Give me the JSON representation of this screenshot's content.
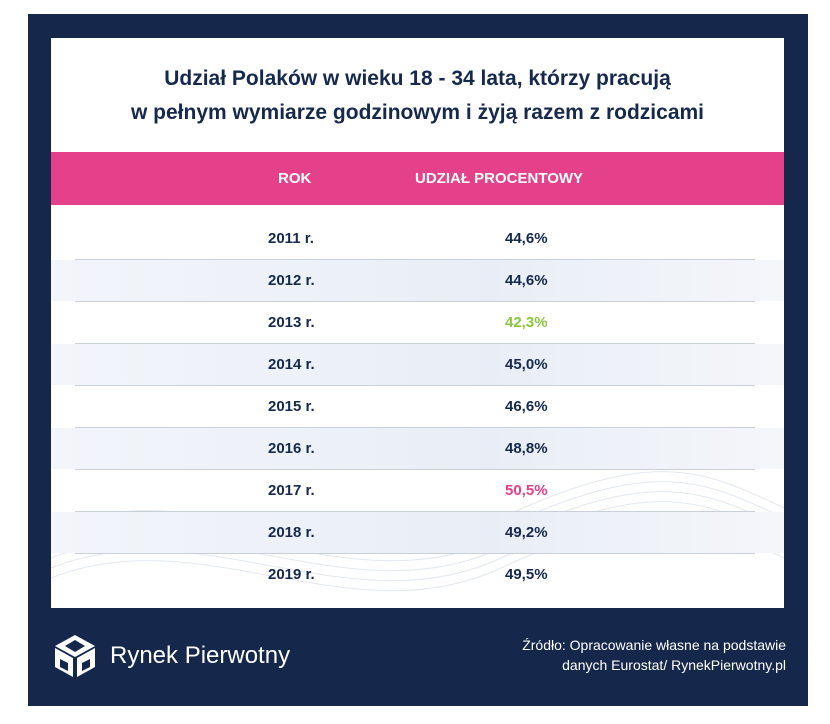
{
  "title": {
    "line1": "Udział Polaków w wieku 18 - 34 lata, którzy pracują",
    "line2": "w pełnym wymiarze godzinowym i żyją razem z rodzicami"
  },
  "chart_data": {
    "type": "table",
    "columns": [
      "ROK",
      "UDZIAŁ PROCENTOWY"
    ],
    "rows": [
      {
        "year": "2011 r.",
        "value": "44,6%",
        "highlight": "none"
      },
      {
        "year": "2012 r.",
        "value": "44,6%",
        "highlight": "none"
      },
      {
        "year": "2013 r.",
        "value": "42,3%",
        "highlight": "min"
      },
      {
        "year": "2014 r.",
        "value": "45,0%",
        "highlight": "none"
      },
      {
        "year": "2015 r.",
        "value": "46,6%",
        "highlight": "none"
      },
      {
        "year": "2016 r.",
        "value": "48,8%",
        "highlight": "none"
      },
      {
        "year": "2017 r.",
        "value": "50,5%",
        "highlight": "max"
      },
      {
        "year": "2018 r.",
        "value": "49,2%",
        "highlight": "none"
      },
      {
        "year": "2019 r.",
        "value": "49,5%",
        "highlight": "none"
      }
    ],
    "colors": {
      "header": "#e4418a",
      "min": "#8cc63f",
      "max": "#e4418a",
      "text": "#16294c",
      "frame": "#15284b"
    }
  },
  "footer": {
    "brand": "Rynek Pierwotny",
    "source_line1": "Źródło: Opracowanie własne na podstawie",
    "source_line2": "danych Eurostat/ RynekPierwotny.pl"
  }
}
